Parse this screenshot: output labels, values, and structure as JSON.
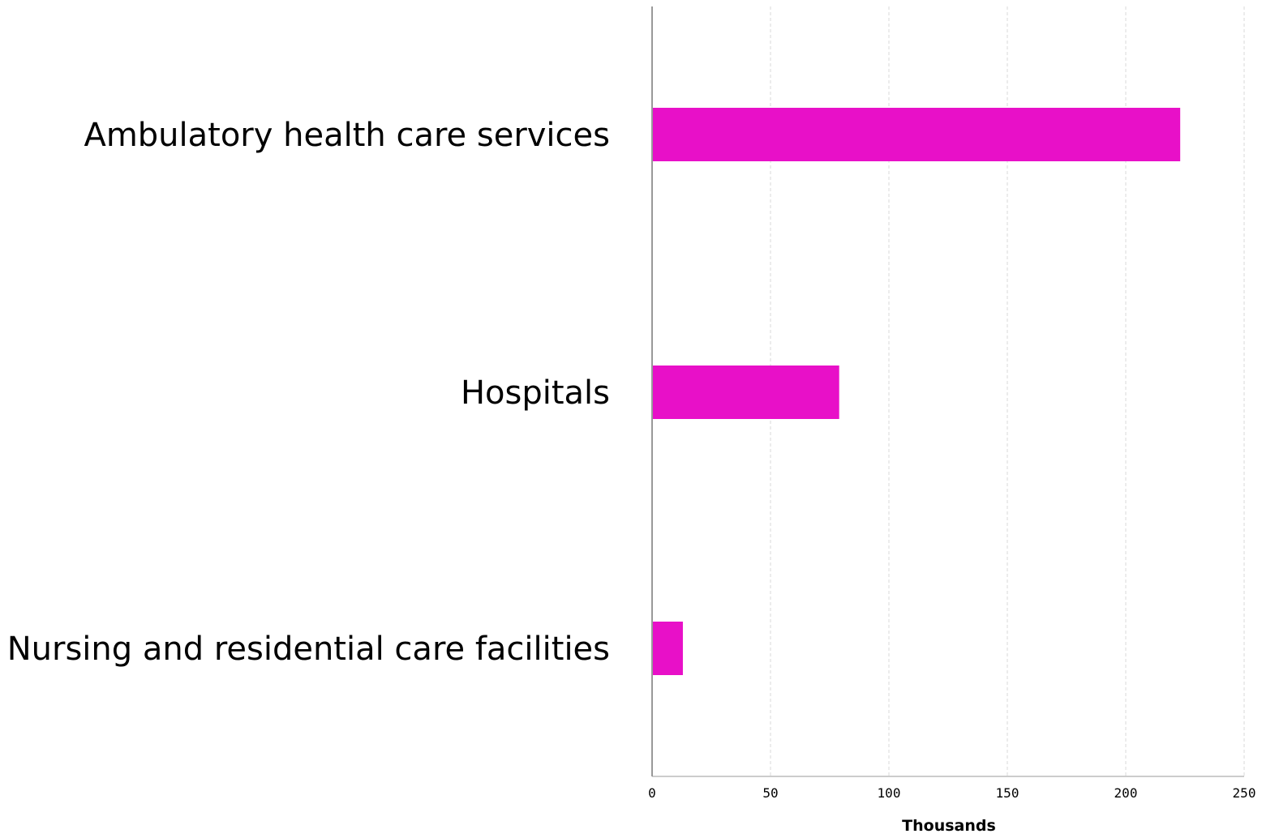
{
  "chart_data": {
    "type": "bar",
    "orientation": "horizontal",
    "categories": [
      "Ambulatory health care services",
      "Hospitals",
      "Nursing and residential care facilities"
    ],
    "values": [
      223,
      79,
      13
    ],
    "xlabel": "Thousands",
    "ylabel": "",
    "xlim": [
      0,
      250
    ],
    "xticks": [
      0,
      50,
      100,
      150,
      200,
      250
    ],
    "xtick_labels": [
      "0",
      "50",
      "100",
      "150",
      "200",
      "250"
    ],
    "grid": "vertical dashed",
    "legend": "none",
    "colors": {
      "bar": "#e810c8",
      "grid": "#d9d9d9",
      "axis": "#999999"
    }
  }
}
